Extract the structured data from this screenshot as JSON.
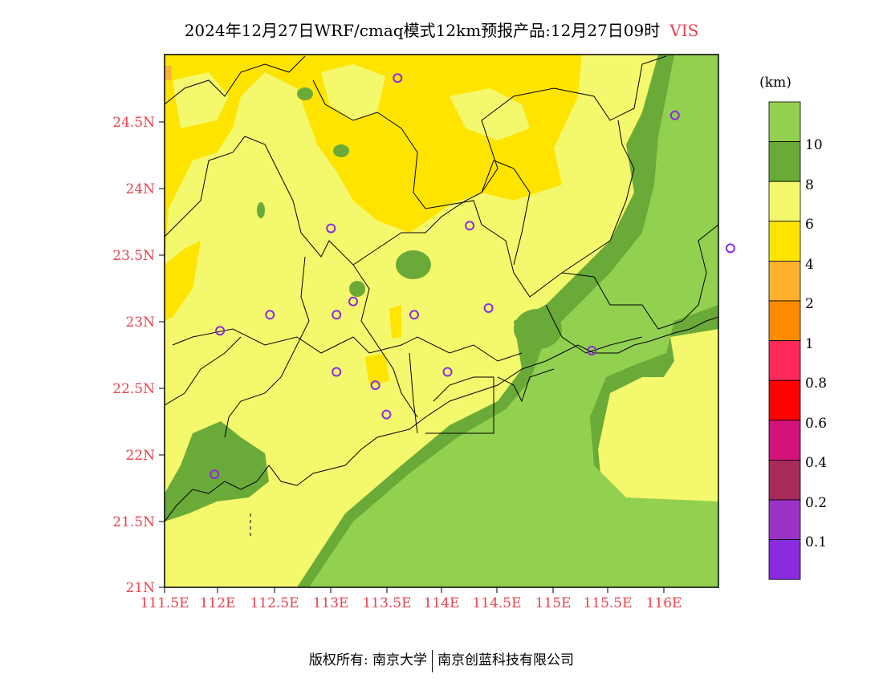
{
  "title": {
    "main": "2024年12月27日WRF/cmaq模式12km预报产品:12月27日09时",
    "variable": "VIS"
  },
  "axes": {
    "lat_labels": [
      "21N",
      "21.5N",
      "22N",
      "22.5N",
      "23N",
      "23.5N",
      "24N",
      "24.5N"
    ],
    "lon_labels": [
      "111.5E",
      "112E",
      "112.5E",
      "113E",
      "113.5E",
      "114E",
      "114.5E",
      "115E",
      "115.5E",
      "116E"
    ],
    "lat_range": [
      21.0,
      25.0
    ],
    "lon_range": [
      111.5,
      116.7
    ]
  },
  "colorbar": {
    "unit": "(km)",
    "labels": [
      "10",
      "8",
      "6",
      "4",
      "2",
      "1",
      "0.8",
      "0.6",
      "0.4",
      "0.2",
      "0.1"
    ],
    "colors": [
      "#92d050",
      "#6aaa38",
      "#f4f86c",
      "#ffe400",
      "#ffb12e",
      "#ff8c00",
      "#ff2a5a",
      "#ff0000",
      "#d3127e",
      "#a82a5a",
      "#9a32c8",
      "#8a2be2"
    ]
  },
  "stations": [
    {
      "lon": 113.6,
      "lat": 24.83
    },
    {
      "lon": 116.1,
      "lat": 24.55
    },
    {
      "lon": 113.0,
      "lat": 23.7
    },
    {
      "lon": 114.25,
      "lat": 23.72
    },
    {
      "lon": 116.6,
      "lat": 23.55
    },
    {
      "lon": 113.2,
      "lat": 23.15
    },
    {
      "lon": 113.05,
      "lat": 23.05
    },
    {
      "lon": 113.75,
      "lat": 23.05
    },
    {
      "lon": 114.42,
      "lat": 23.1
    },
    {
      "lon": 112.45,
      "lat": 23.05
    },
    {
      "lon": 112.0,
      "lat": 22.93
    },
    {
      "lon": 115.35,
      "lat": 22.78
    },
    {
      "lon": 113.05,
      "lat": 22.62
    },
    {
      "lon": 114.05,
      "lat": 22.62
    },
    {
      "lon": 113.4,
      "lat": 22.52
    },
    {
      "lon": 113.5,
      "lat": 22.3
    },
    {
      "lon": 111.95,
      "lat": 21.85
    }
  ],
  "footer": {
    "left": "版权所有: 南京大学",
    "right": "南京创蓝科技有限公司"
  }
}
